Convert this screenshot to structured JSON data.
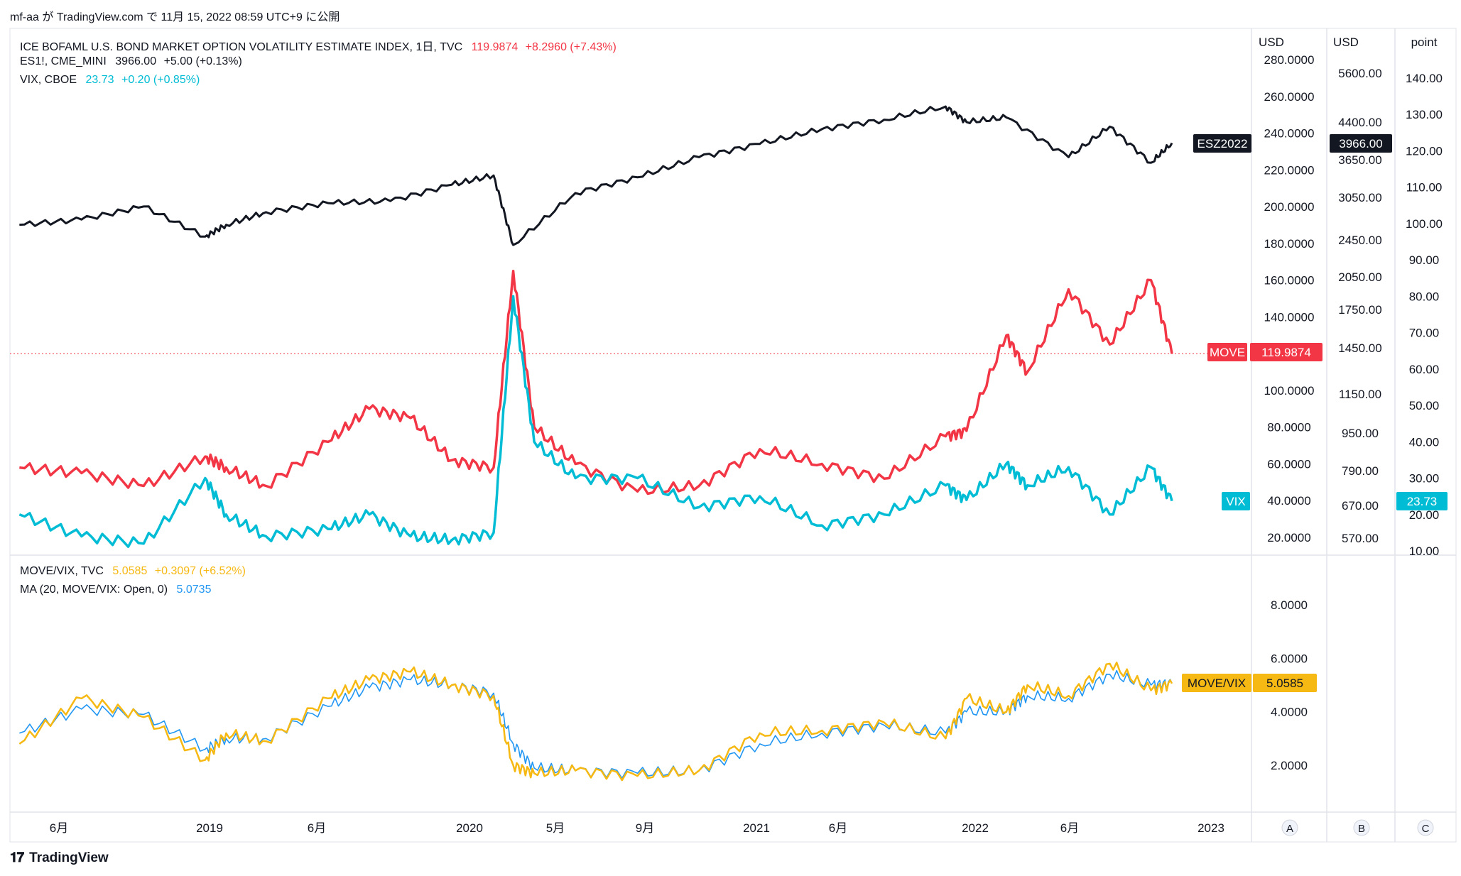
{
  "byline": "mf-aa が TradingView.com で 11月 15, 2022 08:59 UTC+9 に公開",
  "footer_logo": "TradingView",
  "legend": {
    "move": {
      "name": "ICE BOFAML U.S. BOND MARKET OPTION VOLATILITY ESTIMATE INDEX, 1日, TVC",
      "value": "119.9874",
      "change": "+8.2960 (+7.43%)",
      "color": "#f23645"
    },
    "es": {
      "name": "ES1!, CME_MINI",
      "value": "3966.00",
      "change": "+5.00 (+0.13%)",
      "color": "#131722"
    },
    "vix": {
      "name": "VIX, CBOE",
      "value": "23.73",
      "change": "+0.20 (+0.85%)",
      "color": "#00bcd4"
    },
    "ratio": {
      "name": "MOVE/VIX, TVC",
      "value": "5.0585",
      "change": "+0.3097 (+6.52%)",
      "color": "#f6b812"
    },
    "ma": {
      "name": "MA (20, MOVE/VIX: Open, 0)",
      "value": "5.0735",
      "color": "#2196f3"
    }
  },
  "axes": {
    "move_unit": "USD",
    "es_unit": "USD",
    "vix_unit": "point",
    "move_ticks": [
      "280.0000",
      "260.0000",
      "240.0000",
      "220.0000",
      "200.0000",
      "180.0000",
      "160.0000",
      "140.0000",
      "100.0000",
      "80.0000",
      "60.0000",
      "40.0000",
      "20.0000"
    ],
    "es_ticks": [
      "5600.00",
      "4400.00",
      "3650.00",
      "3050.00",
      "2450.00",
      "2050.00",
      "1750.00",
      "1450.00",
      "1150.00",
      "950.00",
      "790.00",
      "670.00",
      "570.00"
    ],
    "vix_ticks": [
      "140.00",
      "130.00",
      "120.00",
      "110.00",
      "100.00",
      "90.00",
      "80.00",
      "70.00",
      "60.00",
      "50.00",
      "40.00",
      "30.00",
      "20.00",
      "10.00"
    ],
    "ratio_ticks": [
      "8.0000",
      "6.0000",
      "4.0000",
      "2.0000"
    ],
    "time_labels": [
      "6月",
      "2019",
      "6月",
      "2020",
      "5月",
      "9月",
      "2021",
      "6月",
      "2022",
      "6月",
      "2023"
    ],
    "corner_buttons": [
      "A",
      "B",
      "C"
    ]
  },
  "price_tags": {
    "es_symbol": "ESZ2022",
    "es_value": "3966.00",
    "move_symbol": "MOVE",
    "move_value": "119.9874",
    "vix_symbol": "VIX",
    "vix_value": "23.73",
    "ratio_symbol": "MOVE/VIX",
    "ratio_value": "5.0585"
  },
  "chart_data": [
    {
      "type": "line",
      "time_range": [
        "2018-03",
        "2022-11-15"
      ],
      "series": [
        {
          "name": "ES1!, CME_MINI",
          "color": "#131722",
          "axis": "USD (ES)",
          "x": [
            "2018-03",
            "2018-06",
            "2018-09",
            "2018-12",
            "2019-01",
            "2019-03",
            "2019-06",
            "2019-09",
            "2019-12",
            "2020-02",
            "2020-03",
            "2020-06",
            "2020-09",
            "2020-12",
            "2021-03",
            "2021-06",
            "2021-09",
            "2021-12",
            "2022-01",
            "2022-03",
            "2022-06",
            "2022-08",
            "2022-10",
            "2022-11"
          ],
          "y": [
            2650,
            2720,
            2900,
            2500,
            2650,
            2820,
            2950,
            2980,
            3230,
            3380,
            2400,
            3100,
            3350,
            3700,
            3950,
            4250,
            4450,
            4750,
            4400,
            4500,
            3700,
            4300,
            3600,
            3966
          ]
        },
        {
          "name": "ICE BOFAML U.S. BOND MARKET OPTION VOLATILITY ESTIMATE INDEX, 1日, TVC",
          "color": "#f23645",
          "axis": "USD (MOVE)",
          "x": [
            "2018-03",
            "2018-06",
            "2018-09",
            "2018-12",
            "2019-01",
            "2019-03",
            "2019-06",
            "2019-08",
            "2019-10",
            "2019-12",
            "2020-02",
            "2020-03",
            "2020-04",
            "2020-06",
            "2020-09",
            "2020-12",
            "2021-03",
            "2021-06",
            "2021-09",
            "2021-12",
            "2022-01",
            "2022-03",
            "2022-04",
            "2022-06",
            "2022-08",
            "2022-10",
            "2022-11"
          ],
          "y": [
            58,
            55,
            48,
            64,
            58,
            48,
            72,
            90,
            85,
            62,
            58,
            165,
            80,
            60,
            45,
            48,
            68,
            60,
            52,
            75,
            78,
            130,
            110,
            155,
            125,
            160,
            120
          ]
        },
        {
          "name": "VIX, CBOE",
          "color": "#00bcd4",
          "axis": "point",
          "x": [
            "2018-03",
            "2018-06",
            "2018-09",
            "2018-12",
            "2019-01",
            "2019-03",
            "2019-06",
            "2019-08",
            "2019-10",
            "2019-12",
            "2020-02",
            "2020-03",
            "2020-04",
            "2020-06",
            "2020-09",
            "2020-12",
            "2021-03",
            "2021-06",
            "2021-09",
            "2021-12",
            "2022-01",
            "2022-03",
            "2022-04",
            "2022-06",
            "2022-08",
            "2022-10",
            "2022-11"
          ],
          "y": [
            20,
            14,
            12,
            30,
            20,
            14,
            16,
            20,
            14,
            13,
            15,
            80,
            40,
            30,
            30,
            22,
            25,
            17,
            20,
            28,
            24,
            34,
            28,
            33,
            20,
            33,
            23.73
          ]
        }
      ]
    },
    {
      "type": "line",
      "series": [
        {
          "name": "MOVE/VIX, TVC",
          "color": "#f6b812",
          "x": [
            "2018-03",
            "2018-06",
            "2018-09",
            "2018-12",
            "2019-01",
            "2019-03",
            "2019-06",
            "2019-08",
            "2019-10",
            "2019-12",
            "2020-02",
            "2020-03",
            "2020-04",
            "2020-06",
            "2020-09",
            "2020-12",
            "2021-03",
            "2021-06",
            "2021-09",
            "2021-12",
            "2022-01",
            "2022-03",
            "2022-04",
            "2022-06",
            "2022-08",
            "2022-10",
            "2022-11"
          ],
          "y": [
            2.8,
            4.5,
            3.8,
            2.2,
            3.2,
            2.9,
            4.5,
            5.2,
            5.5,
            5.0,
            4.6,
            2.0,
            1.7,
            1.8,
            1.6,
            1.8,
            3.2,
            3.3,
            3.6,
            3.0,
            4.5,
            4.0,
            5.0,
            4.6,
            5.8,
            4.8,
            5.0585
          ]
        },
        {
          "name": "MA (20, MOVE/VIX: Open, 0)",
          "color": "#2196f3",
          "x": [
            "2018-03",
            "2018-06",
            "2018-09",
            "2018-12",
            "2019-01",
            "2019-03",
            "2019-06",
            "2019-08",
            "2019-10",
            "2019-12",
            "2020-02",
            "2020-03",
            "2020-04",
            "2020-06",
            "2020-09",
            "2020-12",
            "2021-03",
            "2021-06",
            "2021-09",
            "2021-12",
            "2022-01",
            "2022-03",
            "2022-04",
            "2022-06",
            "2022-08",
            "2022-10",
            "2022-11"
          ],
          "y": [
            3.2,
            4.1,
            3.9,
            2.6,
            3.0,
            3.0,
            4.2,
            4.9,
            5.2,
            5.0,
            4.7,
            2.8,
            1.9,
            1.8,
            1.7,
            1.8,
            2.8,
            3.2,
            3.5,
            3.2,
            4.0,
            4.0,
            4.6,
            4.5,
            5.4,
            5.0,
            5.0735
          ]
        }
      ]
    }
  ]
}
